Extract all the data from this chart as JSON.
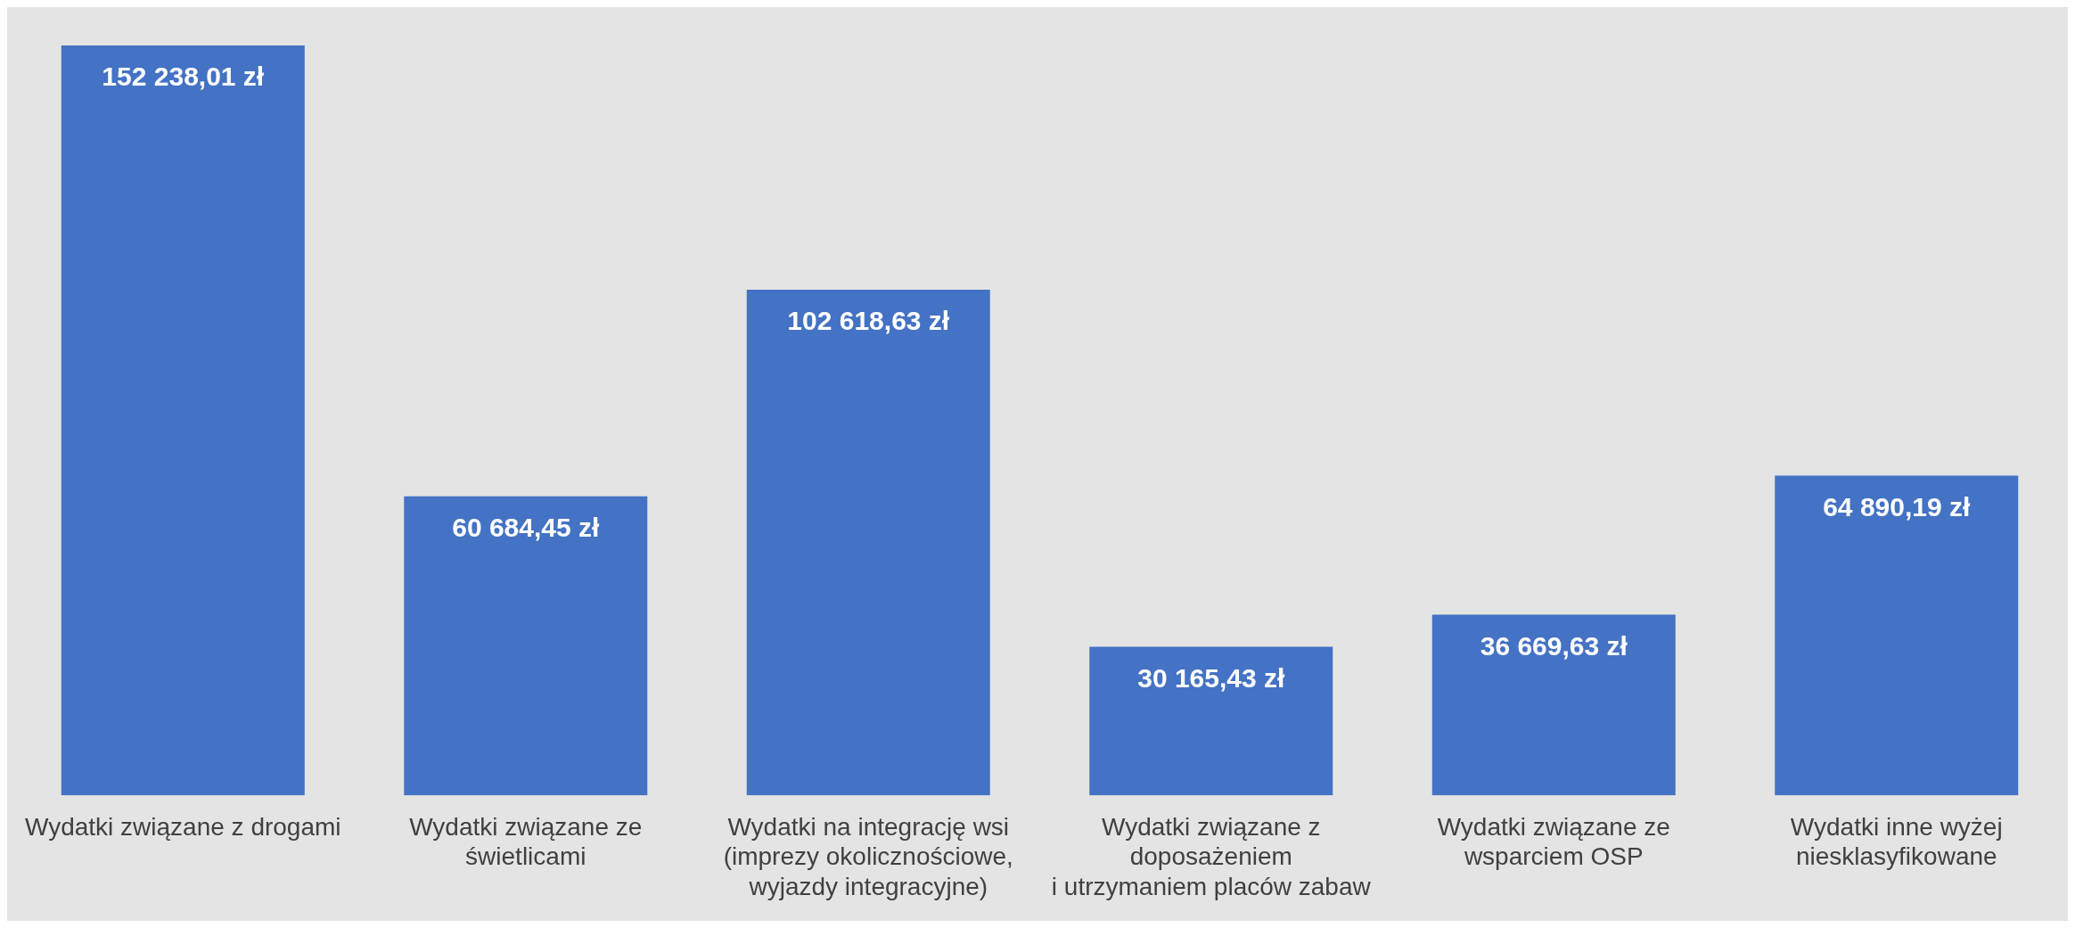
{
  "chart_data": {
    "type": "bar",
    "categories": [
      "Wydatki związane z drogami",
      "Wydatki związane ze\nświetlicami",
      "Wydatki na integrację wsi\n(imprezy okolicznościowe,\nwyjazdy integracyjne)",
      "Wydatki związane z\ndoposażeniem\ni utrzymaniem placów zabaw",
      "Wydatki związane ze\nwsparciem OSP",
      "Wydatki inne wyżej\nniesklasyfikowane"
    ],
    "values": [
      152238.01,
      60684.45,
      102618.63,
      30165.43,
      36669.63,
      64890.19
    ],
    "value_labels": [
      "152 238,01 zł",
      "60 684,45 zł",
      "102 618,63 zł",
      "30 165,43 zł",
      "36 669,63 zł",
      "64 890,19 zł"
    ],
    "color": "#4472c4",
    "grid": false,
    "legend": false
  }
}
